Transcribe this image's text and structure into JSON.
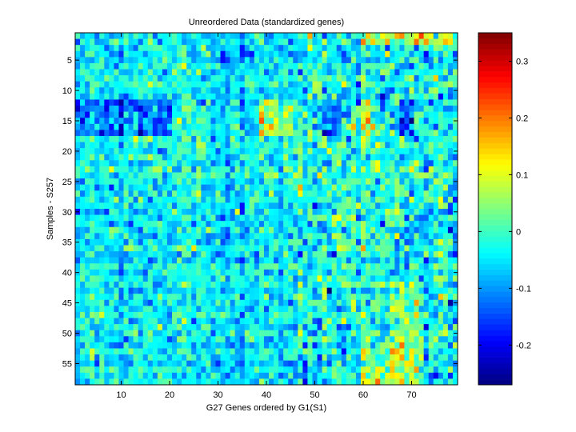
{
  "chart_data": {
    "type": "heatmap",
    "title": "Unreordered Data (standardized genes)",
    "xlabel": "G27 Genes ordered by G1(S1)",
    "ylabel": "Samples - S257",
    "n_cols": 79,
    "n_rows": 58,
    "x_ticks": [
      10,
      20,
      30,
      40,
      50,
      60,
      70
    ],
    "y_ticks": [
      5,
      10,
      15,
      20,
      25,
      30,
      35,
      40,
      45,
      50,
      55
    ],
    "colorbar": {
      "range": [
        -0.27,
        0.35
      ],
      "ticks": [
        -0.2,
        -0.1,
        0,
        0.1,
        0.2,
        0.3
      ],
      "tick_labels": [
        "-0.2",
        "-0.1",
        "0",
        "0.1",
        "0.2",
        "0.3"
      ],
      "colormap": "jet"
    },
    "seed": 257,
    "noise_sd": 0.045,
    "base_value": -0.04,
    "features": [
      {
        "rows": [
          12,
          17
        ],
        "cols": [
          1,
          20
        ],
        "delta": -0.09
      },
      {
        "rows": [
          12,
          17
        ],
        "cols": [
          39,
          45
        ],
        "delta": 0.12
      },
      {
        "rows": [
          12,
          17
        ],
        "cols": [
          52,
          55
        ],
        "delta": -0.11
      },
      {
        "rows": [
          12,
          17
        ],
        "cols": [
          68,
          70
        ],
        "delta": -0.12
      },
      {
        "rows": [
          12,
          17
        ],
        "cols": [
          60,
          62
        ],
        "delta": 0.07
      },
      {
        "rows": [
          42,
          58
        ],
        "cols": [
          66,
          72
        ],
        "delta": 0.07
      },
      {
        "rows": [
          52,
          58
        ],
        "cols": [
          60,
          70
        ],
        "delta": 0.08
      },
      {
        "rows": [
          1,
          2
        ],
        "cols": [
          60,
          78
        ],
        "delta": 0.12
      }
    ]
  }
}
